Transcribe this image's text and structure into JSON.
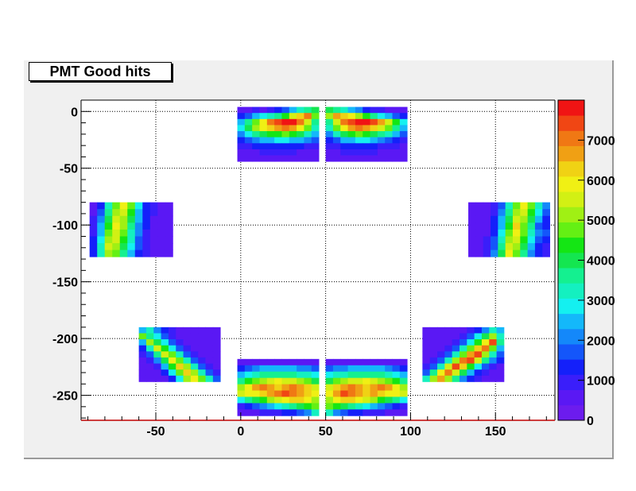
{
  "canvas": {
    "background": "#f0f0f0"
  },
  "title": "PMT Good hits",
  "chart_data": {
    "type": "heatmap",
    "title": "PMT Good hits",
    "xlabel": "",
    "ylabel": "",
    "xlim": [
      -94,
      185
    ],
    "ylim": [
      -272,
      10
    ],
    "x_ticks": [
      "-50",
      "0",
      "50",
      "100",
      "150"
    ],
    "y_ticks": [
      "0",
      "-50",
      "-100",
      "-150",
      "-200",
      "-250"
    ],
    "grid": true,
    "z_range": [
      0,
      8000
    ],
    "z_ticks": [
      "0",
      "1000",
      "2000",
      "3000",
      "4000",
      "5000",
      "6000",
      "7000"
    ],
    "palette": [
      "#6c1cee",
      "#5a18f4",
      "#3a1efa",
      "#1420fa",
      "#1456fa",
      "#1488fa",
      "#14b8fa",
      "#14f0f0",
      "#14f0c0",
      "#14f090",
      "#14e650",
      "#14e614",
      "#64f014",
      "#a0f014",
      "#d2f014",
      "#f0f014",
      "#f0d214",
      "#f0a014",
      "#f07814",
      "#f04614",
      "#f01414"
    ],
    "modules": [
      {
        "id": "top-left",
        "x": [
          -2,
          46
        ],
        "y": [
          -44,
          4
        ],
        "rows": [
          [
            1,
            1,
            2,
            1,
            2,
            3,
            4,
            6,
            8,
            9,
            10
          ],
          [
            3,
            4,
            6,
            7,
            8,
            9,
            11,
            14,
            16,
            18,
            12
          ],
          [
            6,
            9,
            12,
            15,
            18,
            19,
            20,
            20,
            18,
            14,
            9
          ],
          [
            7,
            10,
            13,
            15,
            16,
            17,
            18,
            17,
            15,
            12,
            8
          ],
          [
            5,
            7,
            9,
            10,
            11,
            11,
            12,
            11,
            10,
            8,
            6
          ],
          [
            3,
            4,
            5,
            6,
            6,
            7,
            7,
            6,
            6,
            5,
            4
          ],
          [
            2,
            2,
            3,
            3,
            3,
            3,
            3,
            3,
            3,
            2,
            2
          ],
          [
            1,
            1,
            1,
            2,
            2,
            2,
            2,
            2,
            1,
            1,
            1
          ],
          [
            1,
            1,
            1,
            1,
            1,
            1,
            1,
            1,
            1,
            1,
            1
          ]
        ]
      },
      {
        "id": "top-right",
        "x": [
          50,
          98
        ],
        "y": [
          -44,
          4
        ],
        "rows": [
          [
            10,
            9,
            8,
            6,
            5,
            3,
            2,
            2,
            1,
            1,
            1
          ],
          [
            13,
            17,
            16,
            15,
            13,
            11,
            9,
            7,
            6,
            4,
            3
          ],
          [
            9,
            14,
            18,
            19,
            20,
            20,
            19,
            17,
            14,
            11,
            7
          ],
          [
            8,
            12,
            15,
            17,
            18,
            17,
            16,
            14,
            12,
            9,
            6
          ],
          [
            5,
            8,
            10,
            11,
            12,
            11,
            10,
            9,
            8,
            6,
            4
          ],
          [
            3,
            4,
            6,
            6,
            7,
            7,
            6,
            5,
            4,
            3,
            2
          ],
          [
            2,
            2,
            3,
            3,
            3,
            3,
            3,
            2,
            2,
            2,
            1
          ],
          [
            1,
            1,
            2,
            2,
            2,
            2,
            2,
            1,
            1,
            1,
            1
          ],
          [
            1,
            1,
            1,
            1,
            1,
            1,
            1,
            1,
            1,
            1,
            1
          ]
        ]
      },
      {
        "id": "left",
        "x": [
          -89,
          -40
        ],
        "y": [
          -128,
          -80
        ],
        "rows": [
          [
            1,
            3,
            8,
            12,
            15,
            12,
            7,
            3,
            2,
            1,
            1
          ],
          [
            1,
            4,
            9,
            13,
            14,
            11,
            6,
            3,
            2,
            1,
            1
          ],
          [
            2,
            5,
            10,
            14,
            13,
            10,
            6,
            3,
            1,
            1,
            1
          ],
          [
            2,
            6,
            11,
            15,
            13,
            9,
            5,
            3,
            1,
            1,
            1
          ],
          [
            2,
            6,
            12,
            14,
            12,
            8,
            5,
            2,
            1,
            1,
            1
          ],
          [
            3,
            7,
            13,
            14,
            11,
            8,
            4,
            2,
            1,
            1,
            1
          ],
          [
            3,
            8,
            14,
            13,
            10,
            7,
            4,
            2,
            1,
            1,
            1
          ],
          [
            3,
            8,
            13,
            12,
            9,
            6,
            3,
            2,
            1,
            1,
            1
          ]
        ]
      },
      {
        "id": "right",
        "x": [
          134,
          182
        ],
        "y": [
          -128,
          -80
        ],
        "rows": [
          [
            1,
            1,
            1,
            2,
            4,
            8,
            12,
            15,
            12,
            8,
            5
          ],
          [
            1,
            1,
            1,
            2,
            5,
            9,
            13,
            14,
            11,
            7,
            4
          ],
          [
            1,
            1,
            1,
            3,
            6,
            10,
            14,
            13,
            10,
            6,
            3
          ],
          [
            1,
            1,
            1,
            3,
            6,
            11,
            16,
            12,
            9,
            4,
            3
          ],
          [
            1,
            1,
            1,
            3,
            7,
            12,
            15,
            12,
            8,
            5,
            4
          ],
          [
            1,
            1,
            2,
            4,
            8,
            13,
            14,
            11,
            7,
            4,
            3
          ],
          [
            1,
            1,
            2,
            4,
            9,
            14,
            13,
            10,
            6,
            3,
            2
          ],
          [
            1,
            1,
            2,
            5,
            10,
            15,
            12,
            9,
            5,
            3,
            2
          ]
        ]
      },
      {
        "id": "bottom-left-diag",
        "x": [
          -60,
          -12
        ],
        "y": [
          -238,
          -190
        ],
        "rows": [
          [
            6,
            8,
            5,
            3,
            2,
            1,
            1,
            1,
            1,
            1,
            1
          ],
          [
            12,
            9,
            7,
            4,
            2,
            1,
            1,
            1,
            1,
            1,
            1
          ],
          [
            6,
            13,
            10,
            7,
            4,
            2,
            1,
            1,
            1,
            1,
            1
          ],
          [
            3,
            8,
            14,
            11,
            7,
            4,
            2,
            1,
            1,
            1,
            1
          ],
          [
            2,
            4,
            9,
            14,
            12,
            8,
            4,
            2,
            1,
            1,
            1
          ],
          [
            1,
            2,
            5,
            10,
            15,
            12,
            8,
            4,
            2,
            1,
            1
          ],
          [
            1,
            1,
            2,
            6,
            11,
            16,
            13,
            8,
            4,
            2,
            1
          ],
          [
            1,
            1,
            1,
            3,
            7,
            12,
            16,
            13,
            8,
            4,
            2
          ],
          [
            1,
            1,
            1,
            1,
            3,
            7,
            13,
            15,
            12,
            8,
            4
          ]
        ]
      },
      {
        "id": "bottom-right-diag",
        "x": [
          107,
          155
        ],
        "y": [
          -238,
          -190
        ],
        "rows": [
          [
            1,
            1,
            1,
            1,
            1,
            1,
            2,
            3,
            5,
            8,
            6
          ],
          [
            1,
            1,
            1,
            1,
            1,
            2,
            4,
            7,
            10,
            13,
            8
          ],
          [
            1,
            1,
            1,
            1,
            2,
            4,
            7,
            11,
            15,
            19,
            9
          ],
          [
            1,
            1,
            1,
            2,
            4,
            8,
            12,
            16,
            18,
            12,
            6
          ],
          [
            1,
            1,
            2,
            4,
            8,
            12,
            17,
            19,
            13,
            8,
            4
          ],
          [
            1,
            2,
            4,
            8,
            13,
            18,
            19,
            14,
            9,
            5,
            3
          ],
          [
            2,
            4,
            8,
            14,
            19,
            16,
            11,
            7,
            4,
            2,
            1
          ],
          [
            4,
            9,
            15,
            18,
            14,
            10,
            6,
            3,
            2,
            1,
            1
          ],
          [
            8,
            13,
            17,
            13,
            9,
            5,
            3,
            2,
            1,
            1,
            1
          ]
        ]
      },
      {
        "id": "bottom-center-left",
        "x": [
          -2,
          46
        ],
        "y": [
          -268,
          -218
        ],
        "rows": [
          [
            1,
            1,
            1,
            1,
            1,
            1,
            1,
            1,
            1,
            1,
            1
          ],
          [
            3,
            4,
            5,
            6,
            6,
            6,
            6,
            6,
            5,
            5,
            4
          ],
          [
            6,
            7,
            8,
            9,
            9,
            9,
            9,
            9,
            8,
            8,
            7
          ],
          [
            9,
            11,
            12,
            13,
            14,
            15,
            14,
            14,
            13,
            12,
            10
          ],
          [
            13,
            15,
            17,
            18,
            17,
            16,
            17,
            18,
            17,
            16,
            14
          ],
          [
            14,
            15,
            15,
            16,
            17,
            18,
            19,
            18,
            17,
            16,
            15
          ],
          [
            7,
            9,
            10,
            11,
            13,
            14,
            15,
            16,
            16,
            15,
            13
          ],
          [
            2,
            3,
            4,
            5,
            6,
            7,
            8,
            9,
            10,
            11,
            12
          ],
          [
            1,
            1,
            1,
            2,
            2,
            2,
            3,
            3,
            4,
            5,
            8
          ]
        ]
      },
      {
        "id": "bottom-center-right",
        "x": [
          50,
          98
        ],
        "y": [
          -268,
          -218
        ],
        "rows": [
          [
            1,
            1,
            1,
            1,
            1,
            1,
            1,
            1,
            1,
            1,
            1
          ],
          [
            4,
            5,
            5,
            6,
            6,
            6,
            6,
            6,
            5,
            4,
            3
          ],
          [
            7,
            8,
            8,
            9,
            9,
            9,
            9,
            9,
            8,
            7,
            6
          ],
          [
            10,
            12,
            13,
            14,
            14,
            15,
            14,
            13,
            12,
            11,
            9
          ],
          [
            14,
            16,
            17,
            18,
            17,
            16,
            17,
            18,
            17,
            15,
            13
          ],
          [
            15,
            17,
            19,
            18,
            17,
            16,
            17,
            16,
            15,
            15,
            14
          ],
          [
            13,
            15,
            16,
            16,
            15,
            14,
            13,
            11,
            10,
            9,
            7
          ],
          [
            12,
            11,
            10,
            9,
            8,
            7,
            6,
            5,
            4,
            3,
            2
          ],
          [
            8,
            5,
            4,
            3,
            3,
            2,
            2,
            2,
            1,
            1,
            1
          ]
        ]
      }
    ]
  }
}
